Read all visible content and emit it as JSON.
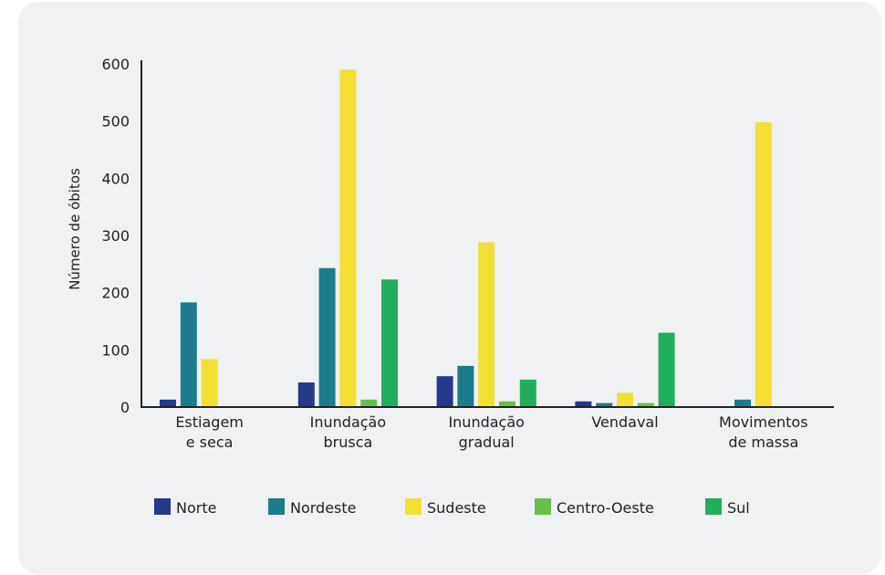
{
  "chart_data": {
    "type": "bar",
    "ylabel": "Número de óbitos",
    "ylim": [
      0,
      600
    ],
    "yticks": [
      0,
      100,
      200,
      300,
      400,
      500,
      600
    ],
    "categories": [
      [
        "Estiagem",
        "e seca"
      ],
      [
        "Inundação",
        "brusca"
      ],
      [
        "Inundação",
        "gradual"
      ],
      [
        "Vendaval"
      ],
      [
        "Movimentos",
        "de massa"
      ]
    ],
    "series": [
      {
        "name": "Norte",
        "color": "#26388a",
        "values": [
          13,
          43,
          54,
          10,
          0
        ]
      },
      {
        "name": "Nordeste",
        "color": "#1c7c8c",
        "values": [
          183,
          243,
          72,
          7,
          13
        ]
      },
      {
        "name": "Sudeste",
        "color": "#f2e035",
        "values": [
          84,
          590,
          288,
          25,
          498
        ]
      },
      {
        "name": "Centro-Oeste",
        "color": "#6abf4b",
        "values": [
          0,
          13,
          10,
          7,
          0
        ]
      },
      {
        "name": "Sul",
        "color": "#22ad5c",
        "values": [
          0,
          223,
          48,
          130,
          0
        ]
      }
    ],
    "legend_position": "bottom",
    "grid": false
  }
}
